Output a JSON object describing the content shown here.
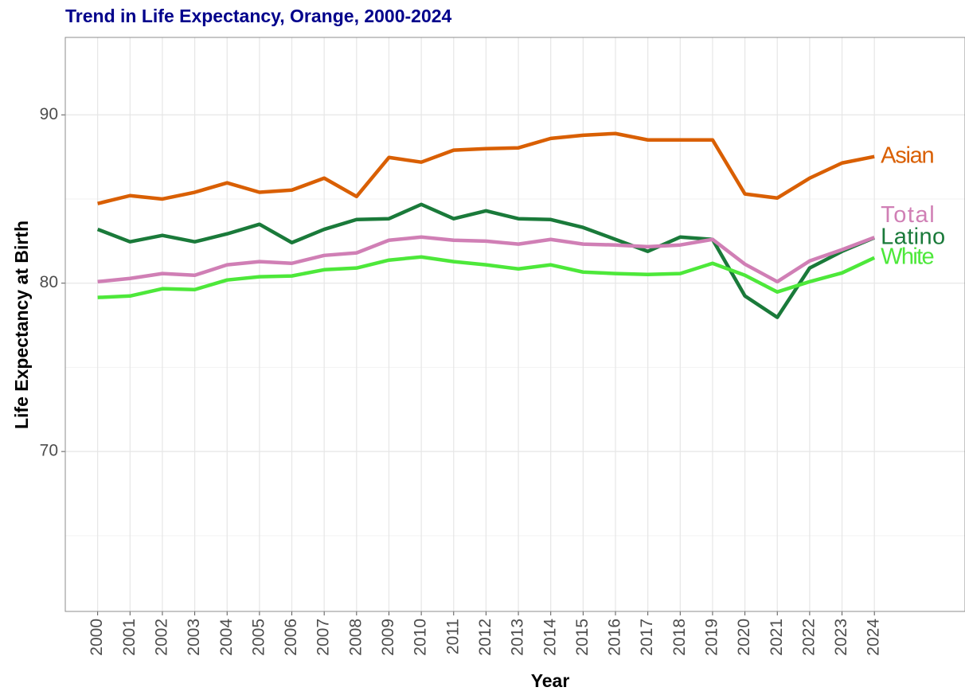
{
  "chart_data": {
    "type": "line",
    "title": "Trend in Life Expectancy, Orange, 2000-2024",
    "xlabel": "Year",
    "ylabel": "Life Expectancy at Birth",
    "x": [
      2000,
      2001,
      2002,
      2003,
      2004,
      2005,
      2006,
      2007,
      2008,
      2009,
      2010,
      2011,
      2012,
      2013,
      2014,
      2015,
      2016,
      2017,
      2018,
      2019,
      2020,
      2021,
      2022,
      2023,
      2024
    ],
    "xlim": [
      1999,
      2026.8
    ],
    "xticks": [
      2000,
      2001,
      2002,
      2003,
      2004,
      2005,
      2006,
      2007,
      2008,
      2009,
      2010,
      2011,
      2012,
      2013,
      2014,
      2015,
      2016,
      2017,
      2018,
      2019,
      2020,
      2021,
      2022,
      2023,
      2024
    ],
    "ylim": [
      60.5,
      94.6
    ],
    "yticks": [
      70,
      80,
      90
    ],
    "y_minor_grid": [
      65,
      75,
      85
    ],
    "grid": true,
    "series": [
      {
        "name": "Asian",
        "color": "#d95f02",
        "values": [
          84.73,
          85.2,
          85.0,
          85.4,
          85.96,
          85.4,
          85.53,
          86.24,
          85.15,
          87.47,
          87.19,
          87.9,
          87.99,
          88.04,
          88.6,
          88.79,
          88.89,
          88.51,
          88.51,
          88.51,
          85.3,
          85.06,
          86.24,
          87.14,
          87.52
        ]
      },
      {
        "name": "Latino",
        "color": "#1a7a3a",
        "values": [
          83.2,
          82.46,
          82.84,
          82.46,
          82.93,
          83.5,
          82.41,
          83.2,
          83.78,
          83.83,
          84.68,
          83.83,
          84.3,
          83.83,
          83.78,
          83.31,
          82.6,
          81.89,
          82.74,
          82.6,
          79.24,
          77.97,
          80.9,
          81.89,
          82.7
        ]
      },
      {
        "name": "Total",
        "color": "#d07fb5",
        "values": [
          80.09,
          80.28,
          80.57,
          80.47,
          81.09,
          81.28,
          81.18,
          81.65,
          81.8,
          82.55,
          82.74,
          82.55,
          82.5,
          82.32,
          82.6,
          82.32,
          82.27,
          82.17,
          82.27,
          82.6,
          81.13,
          80.09,
          81.32,
          81.99,
          82.72
        ]
      },
      {
        "name": "White",
        "color": "#4de83a",
        "values": [
          79.15,
          79.24,
          79.67,
          79.62,
          80.19,
          80.38,
          80.43,
          80.8,
          80.9,
          81.37,
          81.56,
          81.28,
          81.09,
          80.85,
          81.09,
          80.66,
          80.57,
          80.52,
          80.57,
          81.18,
          80.47,
          79.48,
          80.09,
          80.61,
          81.51
        ]
      }
    ]
  }
}
